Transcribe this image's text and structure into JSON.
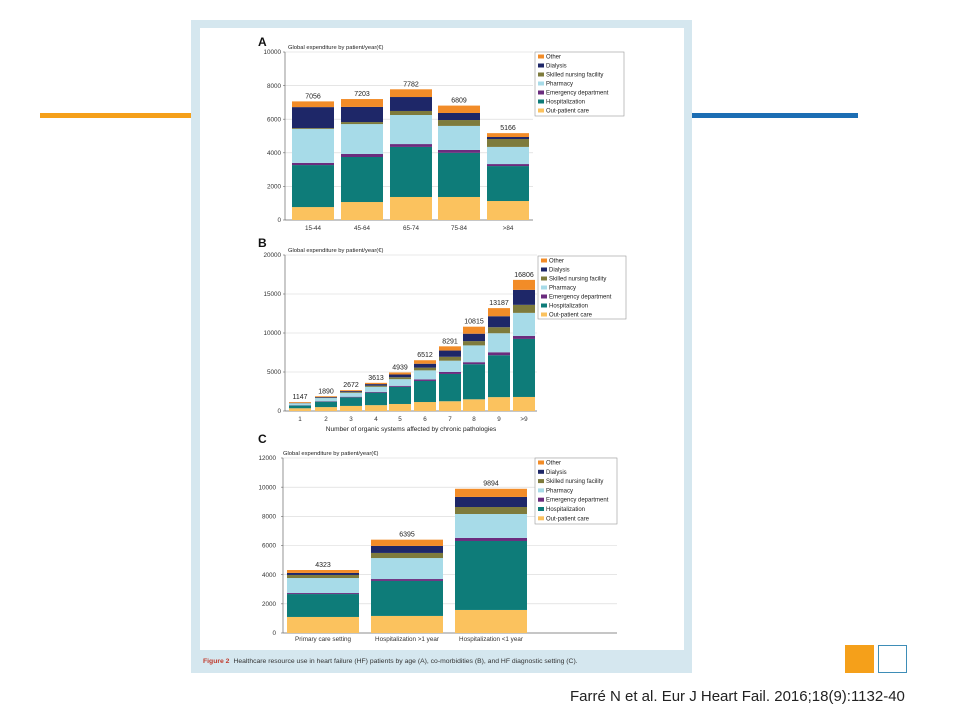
{
  "slide": {
    "citation": "Farré N et al. Eur J Heart Fail. 2016;18(9):1132-40",
    "colors": {
      "accent_orange": "#F5A01A",
      "accent_blue": "#1C6EB4",
      "square_outline": "#3E8DB7"
    }
  },
  "figure": {
    "caption_label": "Figure 2",
    "caption_text": "Healthcare resource use in heart failure (HF) patients by age (A), co-morbidities (B), and HF diagnostic setting (C).",
    "colors": {
      "frame": "#D5E7EF",
      "caption_label": "#C0392B"
    }
  },
  "chart_data": [
    {
      "panel": "A",
      "type": "bar",
      "stacked": true,
      "title": "Global expenditure by patient/year(€)",
      "ylim": [
        0,
        10000
      ],
      "yticks": [
        0,
        2000,
        4000,
        6000,
        8000,
        10000
      ],
      "grid": true,
      "legend": "right",
      "categories": [
        "15-44",
        "45-64",
        "65-74",
        "75-84",
        ">84"
      ],
      "totals": [
        7056,
        7203,
        7782,
        6809,
        5166
      ],
      "series": [
        {
          "name": "Out-patient care",
          "color": "#FBC25E",
          "values": [
            770,
            1070,
            1370,
            1370,
            1130
          ]
        },
        {
          "name": "Hospitalization",
          "color": "#0E7C79",
          "values": [
            2500,
            2680,
            2980,
            2630,
            2080
          ]
        },
        {
          "name": "Emergency department",
          "color": "#6B2C7E",
          "values": [
            130,
            180,
            170,
            170,
            120
          ]
        },
        {
          "name": "Pharmacy",
          "color": "#A7DBE8",
          "values": [
            2020,
            1780,
            1730,
            1430,
            1020
          ]
        },
        {
          "name": "Skilled nursing facility",
          "color": "#7E7B3C",
          "values": [
            50,
            120,
            240,
            350,
            470
          ]
        },
        {
          "name": "Dialysis",
          "color": "#1E2768",
          "values": [
            1250,
            900,
            830,
            420,
            120
          ]
        },
        {
          "name": "Other",
          "color": "#F28C28",
          "values": [
            340,
            470,
            460,
            440,
            230
          ]
        }
      ]
    },
    {
      "panel": "B",
      "type": "bar",
      "stacked": true,
      "title": "Global expenditure by patient/year(€)",
      "xlabel": "Number of organic systems affected by chronic pathologies",
      "ylim": [
        0,
        20000
      ],
      "yticks": [
        0,
        5000,
        10000,
        15000,
        20000
      ],
      "grid": true,
      "legend": "right",
      "categories": [
        "1",
        "2",
        "3",
        "4",
        "5",
        "6",
        "7",
        "8",
        "9",
        ">9"
      ],
      "totals": [
        1147,
        1890,
        2672,
        3613,
        4939,
        6512,
        8291,
        10815,
        13187,
        16806
      ],
      "series": [
        {
          "name": "Out-patient care",
          "color": "#FBC25E",
          "values": [
            350,
            500,
            650,
            750,
            900,
            1150,
            1250,
            1500,
            1780,
            1800
          ]
        },
        {
          "name": "Hospitalization",
          "color": "#0E7C79",
          "values": [
            350,
            700,
            1100,
            1600,
            2200,
            2700,
            3500,
            4500,
            5370,
            7440
          ]
        },
        {
          "name": "Emergency department",
          "color": "#6B2C7E",
          "values": [
            40,
            60,
            80,
            100,
            130,
            200,
            250,
            260,
            380,
            390
          ]
        },
        {
          "name": "Pharmacy",
          "color": "#A7DBE8",
          "values": [
            250,
            400,
            500,
            650,
            850,
            1160,
            1450,
            2150,
            2440,
            2950
          ]
        },
        {
          "name": "Skilled nursing facility",
          "color": "#7E7B3C",
          "values": [
            20,
            50,
            100,
            150,
            250,
            350,
            500,
            550,
            770,
            1030
          ]
        },
        {
          "name": "Dialysis",
          "color": "#1E2768",
          "values": [
            40,
            80,
            120,
            200,
            350,
            500,
            800,
            950,
            1410,
            1920
          ]
        },
        {
          "name": "Other",
          "color": "#F28C28",
          "values": [
            100,
            100,
            120,
            160,
            260,
            450,
            540,
            900,
            1040,
            1280
          ]
        }
      ]
    },
    {
      "panel": "C",
      "type": "bar",
      "stacked": true,
      "title": "Global expenditure by patient/year(€)",
      "ylim": [
        0,
        12000
      ],
      "yticks": [
        0,
        2000,
        4000,
        6000,
        8000,
        10000,
        12000
      ],
      "grid": true,
      "legend": "right",
      "categories": [
        "Primary care setting",
        "Hospitalization >1 year",
        "Hospitalization <1 year"
      ],
      "totals": [
        4323,
        6395,
        9894
      ],
      "series": [
        {
          "name": "Out-patient care",
          "color": "#FBC25E",
          "values": [
            1100,
            1170,
            1580
          ]
        },
        {
          "name": "Hospitalization",
          "color": "#0E7C79",
          "values": [
            1570,
            2400,
            4730
          ]
        },
        {
          "name": "Emergency department",
          "color": "#6B2C7E",
          "values": [
            70,
            130,
            210
          ]
        },
        {
          "name": "Pharmacy",
          "color": "#A7DBE8",
          "values": [
            1030,
            1440,
            1640
          ]
        },
        {
          "name": "Skilled nursing facility",
          "color": "#7E7B3C",
          "values": [
            210,
            350,
            480
          ]
        },
        {
          "name": "Dialysis",
          "color": "#1E2768",
          "values": [
            140,
            480,
            690
          ]
        },
        {
          "name": "Other",
          "color": "#F28C28",
          "values": [
            200,
            430,
            560
          ]
        }
      ]
    }
  ]
}
